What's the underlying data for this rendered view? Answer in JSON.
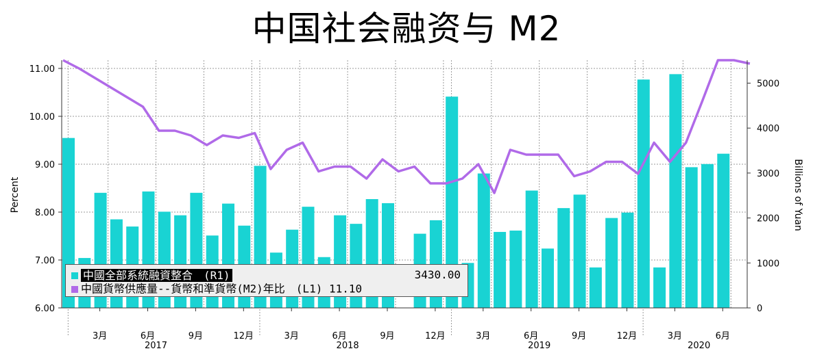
{
  "title": "中国社会融资与 M2",
  "chart_data": {
    "type": "bar+line",
    "left_axis": {
      "label": "Percent",
      "ticks": [
        "6.00",
        "7.00",
        "8.00",
        "9.00",
        "10.00",
        "11.00"
      ],
      "range": [
        6.0,
        11.2
      ]
    },
    "right_axis": {
      "label": "Billions of Yuan",
      "ticks": [
        "0",
        "1000",
        "2000",
        "3000",
        "4000",
        "5000"
      ],
      "range": [
        0,
        5200
      ]
    },
    "x_tick_labels": [
      "3月",
      "6月",
      "9月",
      "12月",
      "3月",
      "6月",
      "9月",
      "12月",
      "3月",
      "6月",
      "9月",
      "12月",
      "3月",
      "6月"
    ],
    "x_tick_months": [
      2,
      5,
      8,
      11,
      14,
      17,
      20,
      23,
      26,
      29,
      32,
      35,
      38,
      41
    ],
    "year_labels": [
      "2017",
      "2018",
      "2019",
      "2020"
    ],
    "year_label_months": [
      5,
      17,
      29,
      39
    ],
    "grid": true,
    "series": [
      {
        "name": "中國全部系統融資整合 (R1)",
        "type": "bar",
        "axis": "right",
        "color": "#19d3d3",
        "values": [
          3780,
          1110,
          2560,
          1970,
          1810,
          2590,
          2140,
          2060,
          2560,
          1610,
          2320,
          1830,
          3160,
          1230,
          1740,
          2250,
          1130,
          2060,
          1870,
          2420,
          2330,
          0,
          1650,
          1950,
          4700,
          1000,
          2990,
          1690,
          1720,
          2610,
          1320,
          2220,
          2520,
          900,
          2000,
          2120,
          5080,
          900,
          5200,
          3130,
          3200,
          3430
        ]
      },
      {
        "name": "中國貨幣供應量--貨幣和準貨幣(M2)年比 (L1)",
        "type": "line",
        "axis": "left",
        "color": "#b06ae8",
        "values": [
          11.3,
          11.0,
          10.8,
          10.6,
          10.4,
          10.2,
          9.7,
          9.7,
          9.6,
          9.4,
          9.6,
          9.55,
          9.65,
          8.9,
          9.3,
          9.45,
          8.85,
          8.95,
          8.95,
          8.7,
          9.1,
          8.85,
          8.95,
          8.6,
          8.6,
          8.7,
          9.0,
          8.4,
          9.3,
          9.2,
          9.2,
          9.2,
          8.75,
          8.85,
          9.05,
          9.05,
          8.8,
          9.45,
          9.05,
          9.45,
          10.3,
          11.2,
          11.2,
          11.1
        ]
      }
    ]
  },
  "legend": {
    "row1_name": "中國全部系統融資整合　(R1)",
    "row1_value": "3430.00",
    "row2_name": "中國貨幣供應量--貨幣和準貨幣(M2)年比　(L1) 11.10",
    "row2_value": ""
  }
}
